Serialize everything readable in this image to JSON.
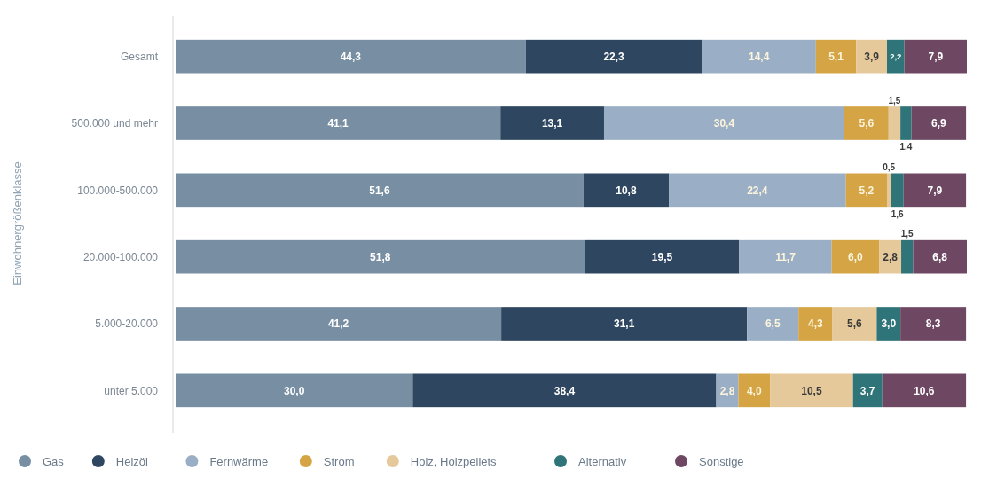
{
  "chart_data": {
    "type": "bar",
    "orientation": "horizontal",
    "stacked": true,
    "ylabel": "Einwohnergrößenklasse",
    "categories": [
      "Gesamt",
      "500.000 und mehr",
      "100.000-500.000",
      "20.000-100.000",
      "5.000-20.000",
      "unter 5.000"
    ],
    "series": [
      {
        "name": "Gas",
        "color": "#778ea3",
        "values": [
          44.3,
          41.1,
          51.6,
          51.8,
          41.2,
          30.0
        ],
        "value_labels": [
          "44,3",
          "41,1",
          "51,6",
          "51,8",
          "41,2",
          "30,0"
        ]
      },
      {
        "name": "Heizöl",
        "color": "#2e4660",
        "values": [
          22.3,
          13.1,
          10.8,
          19.5,
          31.1,
          38.4
        ],
        "value_labels": [
          "22,3",
          "13,1",
          "10,8",
          "19,5",
          "31,1",
          "38,4"
        ]
      },
      {
        "name": "Fernwärme",
        "color": "#9aafc5",
        "values": [
          14.4,
          30.4,
          22.4,
          11.7,
          6.5,
          2.8
        ],
        "value_labels": [
          "14,4",
          "30,4",
          "22,4",
          "11,7",
          "6,5",
          "2,8"
        ]
      },
      {
        "name": "Strom",
        "color": "#d4a445",
        "values": [
          5.1,
          5.6,
          5.2,
          6.0,
          4.3,
          4.0
        ],
        "value_labels": [
          "5,1",
          "5,6",
          "5,2",
          "6,0",
          "4,3",
          "4,0"
        ]
      },
      {
        "name": "Holz, Holzpellets",
        "color": "#e5c99a",
        "values": [
          3.9,
          1.5,
          0.5,
          2.8,
          5.6,
          10.5
        ],
        "value_labels": [
          "3,9",
          "1,5",
          "0,5",
          "2,8",
          "5,6",
          "10,5"
        ]
      },
      {
        "name": "Alternativ",
        "color": "#2f7479",
        "values": [
          2.2,
          1.4,
          1.6,
          1.5,
          3.0,
          3.7
        ],
        "value_labels": [
          "2,2",
          "1,4",
          "1,6",
          "1,5",
          "3,0",
          "3,7"
        ]
      },
      {
        "name": "Sonstige",
        "color": "#6e4762",
        "values": [
          7.9,
          6.9,
          7.9,
          6.8,
          8.3,
          10.6
        ],
        "value_labels": [
          "7,9",
          "6,9",
          "7,9",
          "6,8",
          "8,3",
          "10,6"
        ]
      }
    ],
    "legend": "bottom"
  }
}
